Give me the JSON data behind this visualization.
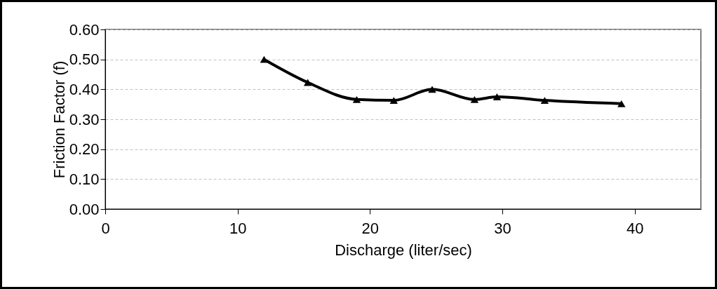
{
  "chart_data": {
    "type": "line",
    "xlabel": "Discharge  (liter/sec)",
    "ylabel": "Friction Factor (f)",
    "x": [
      12.0,
      15.3,
      19.0,
      21.8,
      24.7,
      27.9,
      29.6,
      33.2,
      39.0
    ],
    "series": [
      {
        "color": "#000000",
        "values": [
          0.5,
          0.423,
          0.366,
          0.363,
          0.4,
          0.366,
          0.375,
          0.363,
          0.352
        ]
      }
    ],
    "xlim": [
      0,
      45
    ],
    "xticks": [
      0,
      10,
      20,
      30,
      40
    ],
    "ylim": [
      0,
      0.6
    ],
    "yticks": [
      {
        "value": 0,
        "label": "0.00"
      },
      {
        "value": 0.1,
        "label": "0.10"
      },
      {
        "value": 0.2,
        "label": "0.20"
      },
      {
        "value": 0.3,
        "label": "0.30"
      },
      {
        "value": 0.4,
        "label": "0.40"
      },
      {
        "value": 0.5,
        "label": "0.50"
      },
      {
        "value": 0.6,
        "label": "0.60"
      }
    ],
    "grid": "y",
    "marker": "triangle",
    "line_style": "solid"
  }
}
